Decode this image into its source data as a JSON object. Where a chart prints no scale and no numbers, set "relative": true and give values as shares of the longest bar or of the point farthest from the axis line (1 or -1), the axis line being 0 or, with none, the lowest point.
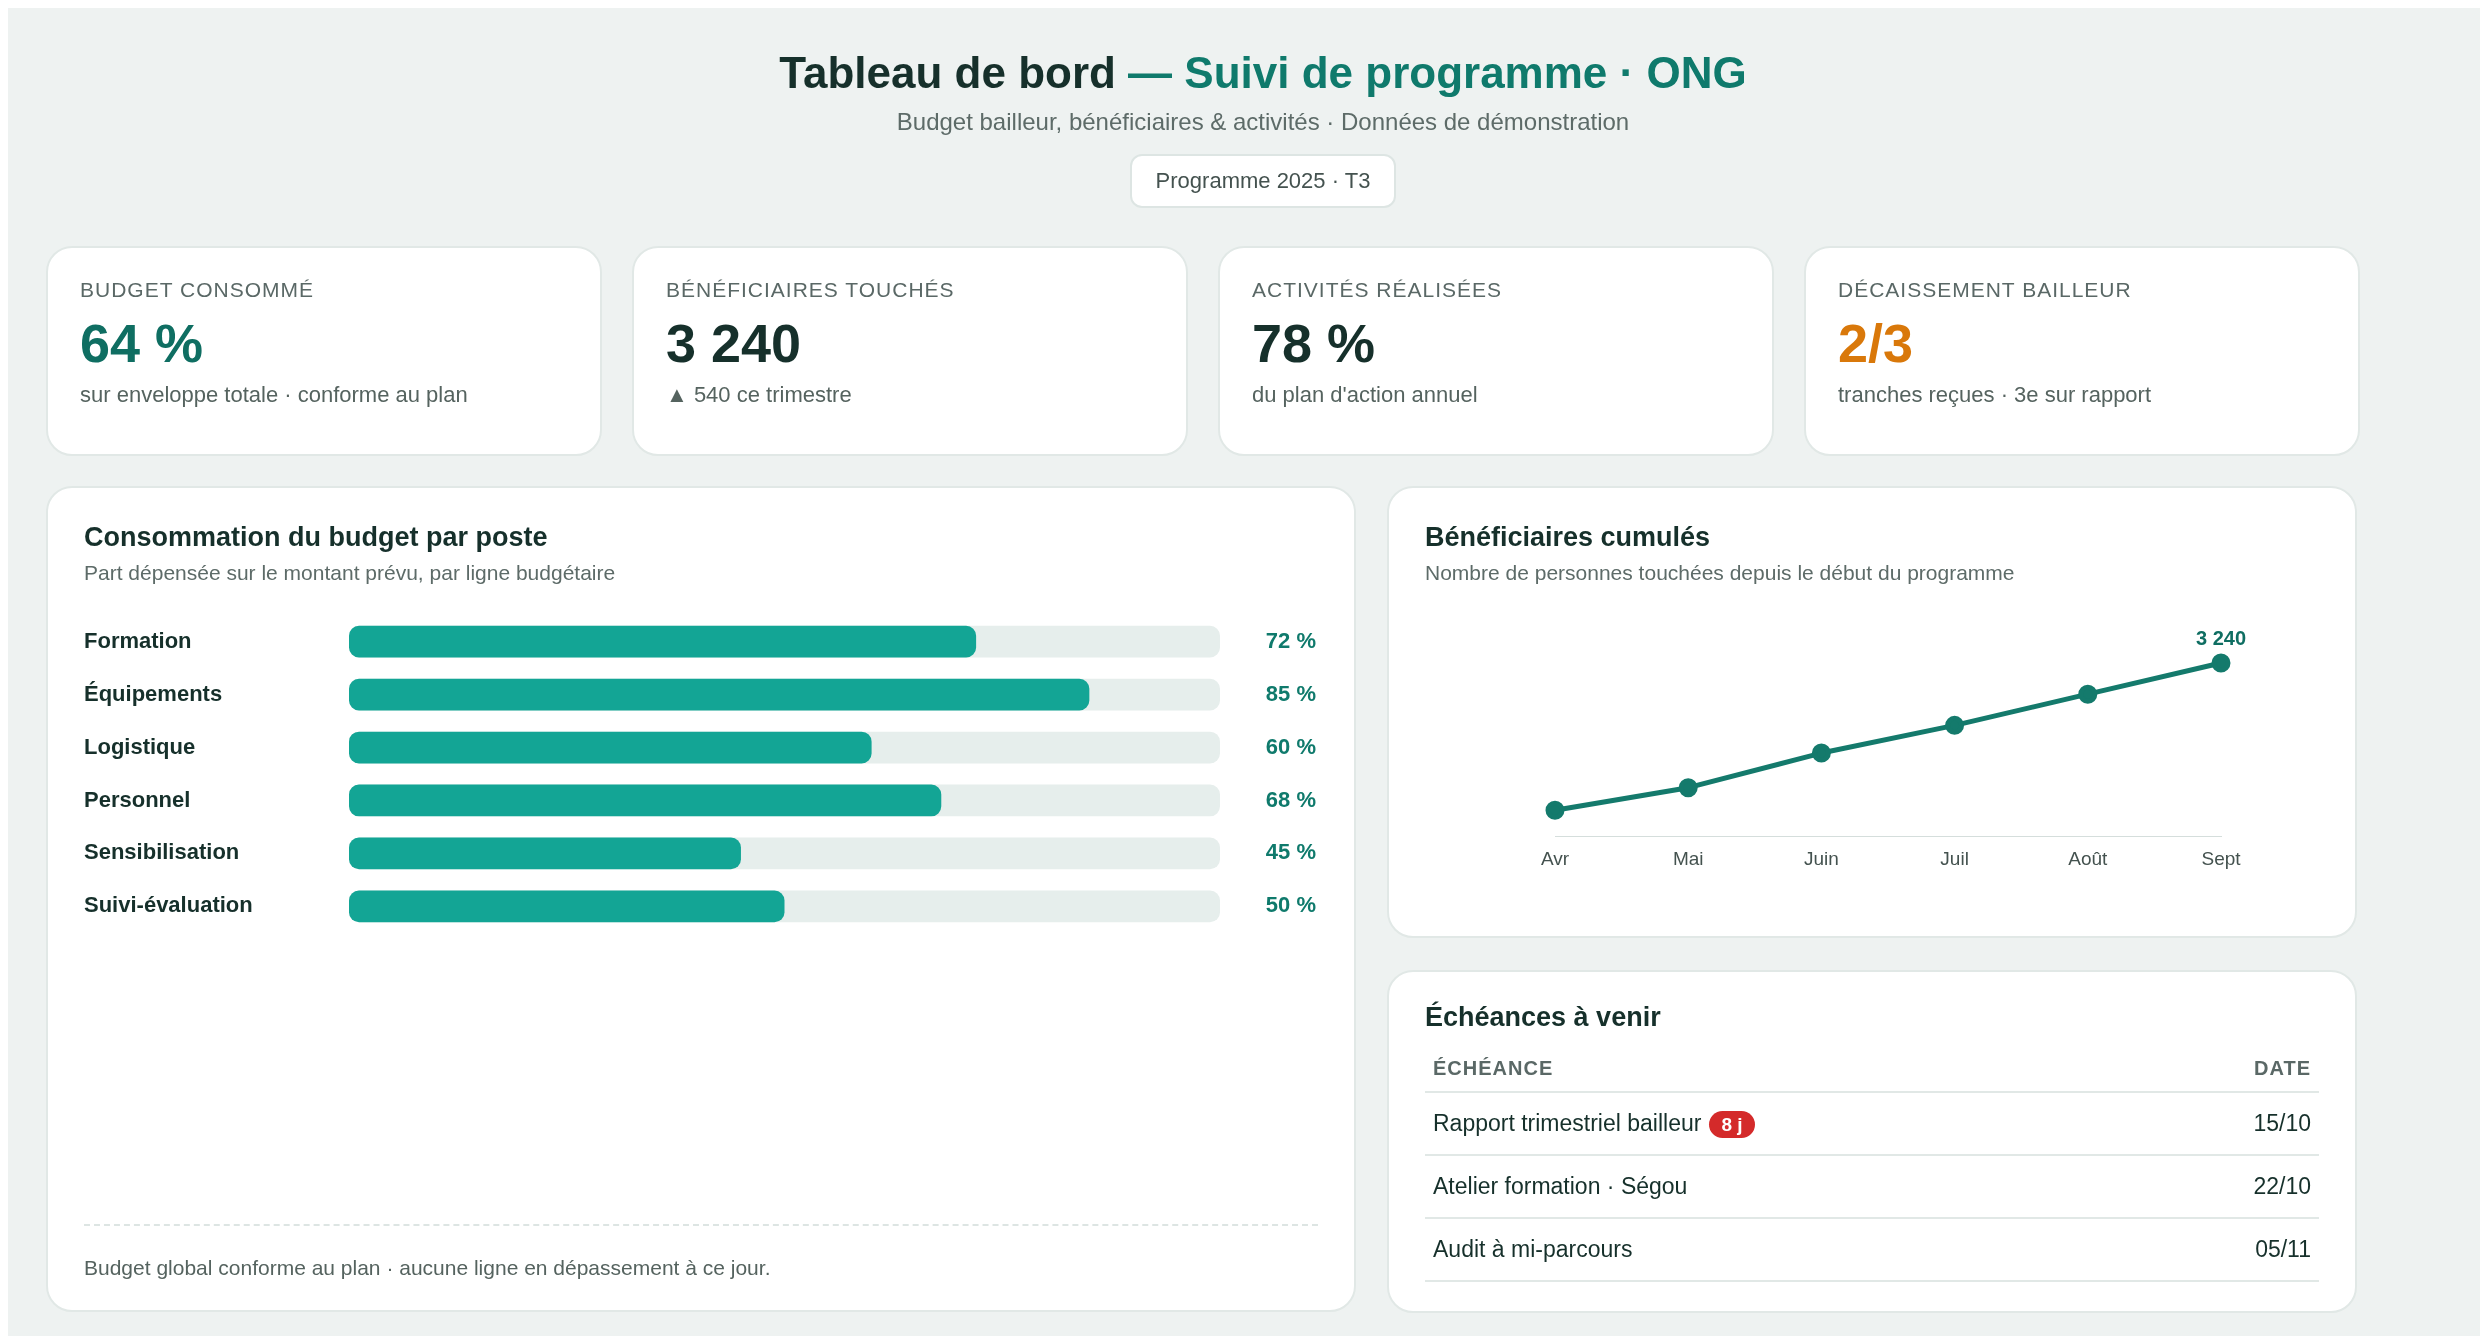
{
  "chart_data": [
    {
      "type": "other",
      "title": "Tableau de bord — Suivi de programme · ONG",
      "subtitle": "Budget bailleur, bénéficiaires & activités · Données de démonstration",
      "annotations": [
        "Programme 2025 · T3"
      ]
    },
    {
      "type": "other",
      "title": "BUDGET CONSOMMÉ",
      "annotations": [
        "64 %",
        "sur enveloppe totale · conforme au plan"
      ],
      "color": "#0f6e62"
    },
    {
      "type": "other",
      "title": "BÉNÉFICIAIRES TOUCHÉS",
      "annotations": [
        "3 240",
        "▲ 540 ce trimestre"
      ],
      "color": "#16302b"
    },
    {
      "type": "other",
      "title": "ACTIVITÉS RÉALISÉES",
      "annotations": [
        "78 %",
        "du plan d'action annuel"
      ],
      "color": "#16302b"
    },
    {
      "type": "other",
      "title": "DÉCAISSEMENT BAILLEUR",
      "annotations": [
        "2/3",
        "tranches reçues · 3e sur rapport"
      ],
      "color": "#d9780a"
    },
    {
      "type": "bar",
      "orientation": "horizontal",
      "title": "Consommation du budget par poste",
      "subtitle": "Part dépensée sur le montant prévu, par ligne budgétaire",
      "categories": [
        "Formation",
        "Équipements",
        "Logistique",
        "Personnel",
        "Sensibilisation",
        "Suivi-évaluation"
      ],
      "values": [
        72,
        85,
        60,
        68,
        45,
        50
      ],
      "value_labels": [
        "72 %",
        "85 %",
        "60 %",
        "68 %",
        "45 %",
        "50 %"
      ],
      "color": "#13a595",
      "xlim": [
        0,
        100
      ],
      "tick_labels": "y",
      "grid": false,
      "legend": false,
      "annotations": [
        "Budget global conforme au plan · aucune ligne en dépassement à ce jour."
      ]
    },
    {
      "type": "line",
      "relative": true,
      "title": "Bénéficiaires cumulés",
      "subtitle": "Nombre de personnes touchées depuis le début du programme",
      "categories": [
        "Avr",
        "Mai",
        "Juin",
        "Juil",
        "Août",
        "Sept"
      ],
      "values": [
        0.15,
        0.28,
        0.48,
        0.64,
        0.82,
        1
      ],
      "annotations": [
        {
          "text": "3 240",
          "x": "Sept",
          "y": 1
        }
      ],
      "color": "#147a6c",
      "marker": "circle",
      "line_style": "solid",
      "tick_labels": "x",
      "grid": false,
      "legend": false
    },
    {
      "type": "other",
      "title": "Échéances à venir",
      "categories": [
        "ÉCHÉANCE",
        "DATE"
      ],
      "y_categories": [
        "Rapport trimestriel bailleur",
        "Atelier formation · Ségou",
        "Audit à mi-parcours"
      ],
      "cell_labels": [
        [
          "15/10"
        ],
        [
          "22/10"
        ],
        [
          "05/11"
        ]
      ],
      "annotations": [
        "8 j"
      ]
    }
  ]
}
